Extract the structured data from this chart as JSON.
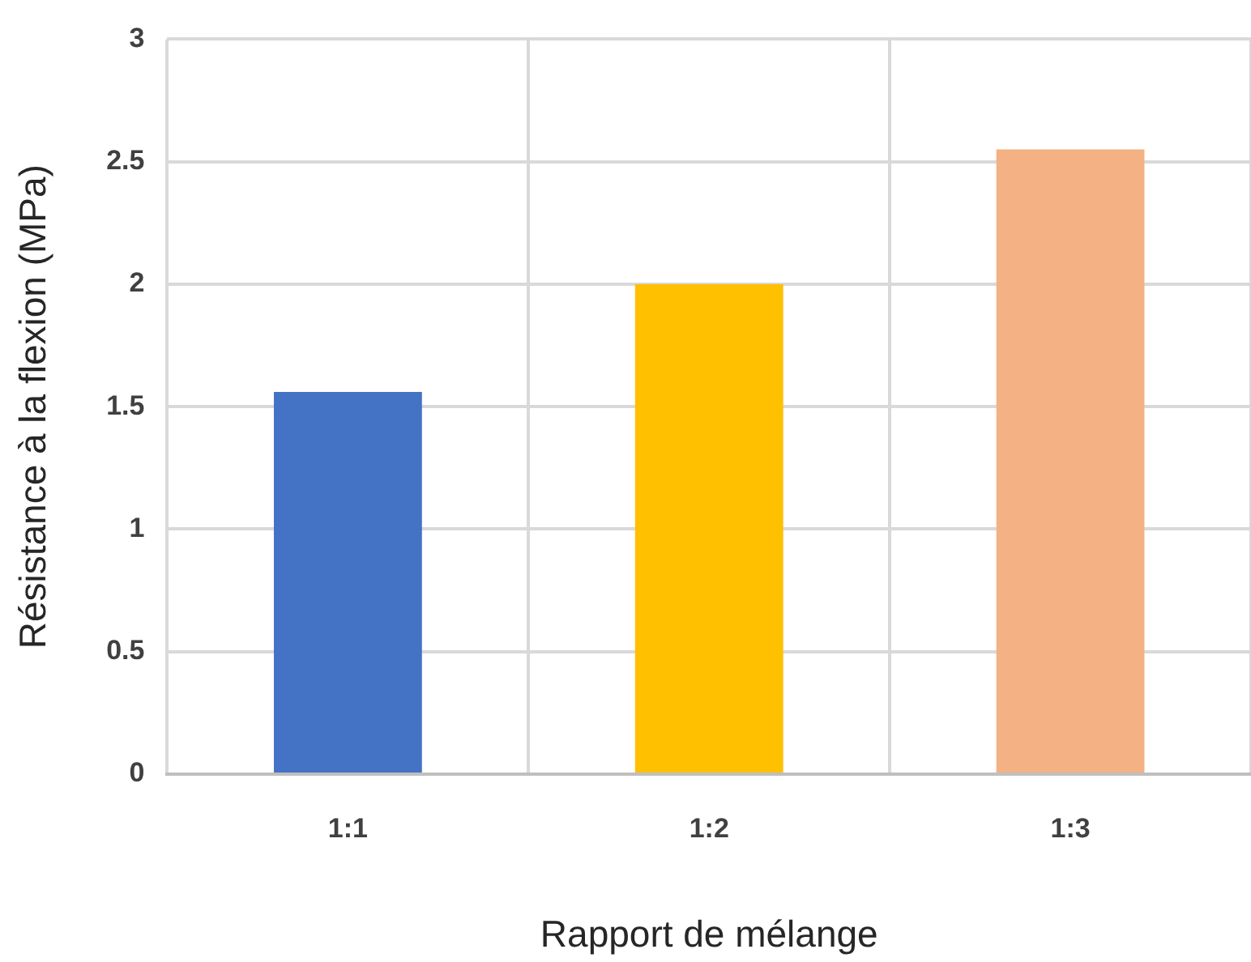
{
  "chart_data": {
    "type": "bar",
    "xlabel": "Rapport de mélange",
    "ylabel": "Résistance à la flexion (MPa)",
    "categories": [
      "1:1",
      "1:2",
      "1:3"
    ],
    "values": [
      1.56,
      2.0,
      2.55
    ],
    "colors": [
      "#4472c4",
      "#ffc000",
      "#f4b183"
    ],
    "ylim": [
      0,
      3
    ],
    "yticks": [
      0,
      0.5,
      1,
      1.5,
      2,
      2.5,
      3
    ],
    "grid": true
  }
}
